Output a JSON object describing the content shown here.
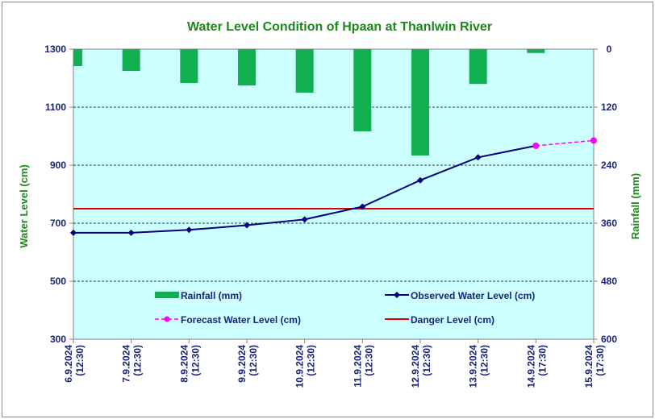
{
  "chart_data": {
    "type": "line",
    "title": "Water Level Condition of Hpaan at Thanlwin River",
    "ylabel_left": "Water Level (cm)",
    "ylabel_right": "Rainfall (mm)",
    "ylim_left": [
      300,
      1300
    ],
    "ylim_right_inverted": [
      0,
      600
    ],
    "yticks_left": [
      "1300",
      "1100",
      "900",
      "700",
      "500",
      "300"
    ],
    "yticks_right": [
      "0",
      "120",
      "240",
      "360",
      "480",
      "600"
    ],
    "categories": [
      {
        "date": "6.9.2024",
        "time": "(12:30)"
      },
      {
        "date": "7.9.2024",
        "time": "(12:30)"
      },
      {
        "date": "8.9.2024",
        "time": "(12:30)"
      },
      {
        "date": "9.9.2024",
        "time": "(12:30)"
      },
      {
        "date": "10.9.2024",
        "time": "(12:30)"
      },
      {
        "date": "11.9.2024",
        "time": "(12:30)"
      },
      {
        "date": "12.9.2024",
        "time": "(12:30)"
      },
      {
        "date": "13.9.2024",
        "time": "(12:30)"
      },
      {
        "date": "14.9.2024",
        "time": "(17:30)"
      },
      {
        "date": "15.9.2024",
        "time": "(17:30)"
      }
    ],
    "series": [
      {
        "name": "Rainfall (mm)",
        "kind": "bar",
        "axis": "right",
        "color": "#11b050",
        "values": [
          35,
          45,
          70,
          75,
          90,
          170,
          220,
          72,
          8,
          null
        ]
      },
      {
        "name": "Observed Water Level (cm)",
        "kind": "line",
        "axis": "left",
        "color": "#000080",
        "values": [
          667,
          667,
          677,
          693,
          713,
          757,
          848,
          927,
          967,
          null
        ]
      },
      {
        "name": "Forecast Water Level (cm)",
        "kind": "dashed-line",
        "axis": "left",
        "color": "#ff00ff",
        "values": [
          null,
          null,
          null,
          null,
          null,
          null,
          null,
          null,
          967,
          985
        ]
      },
      {
        "name": "Danger Level (cm)",
        "kind": "hline",
        "axis": "left",
        "color": "#dd0000",
        "values": [
          750,
          750,
          750,
          750,
          750,
          750,
          750,
          750,
          750,
          750
        ]
      }
    ],
    "grid": "horizontal-dashed",
    "plot_background": "#ccffff",
    "legend_placement": "inside-bottom"
  }
}
